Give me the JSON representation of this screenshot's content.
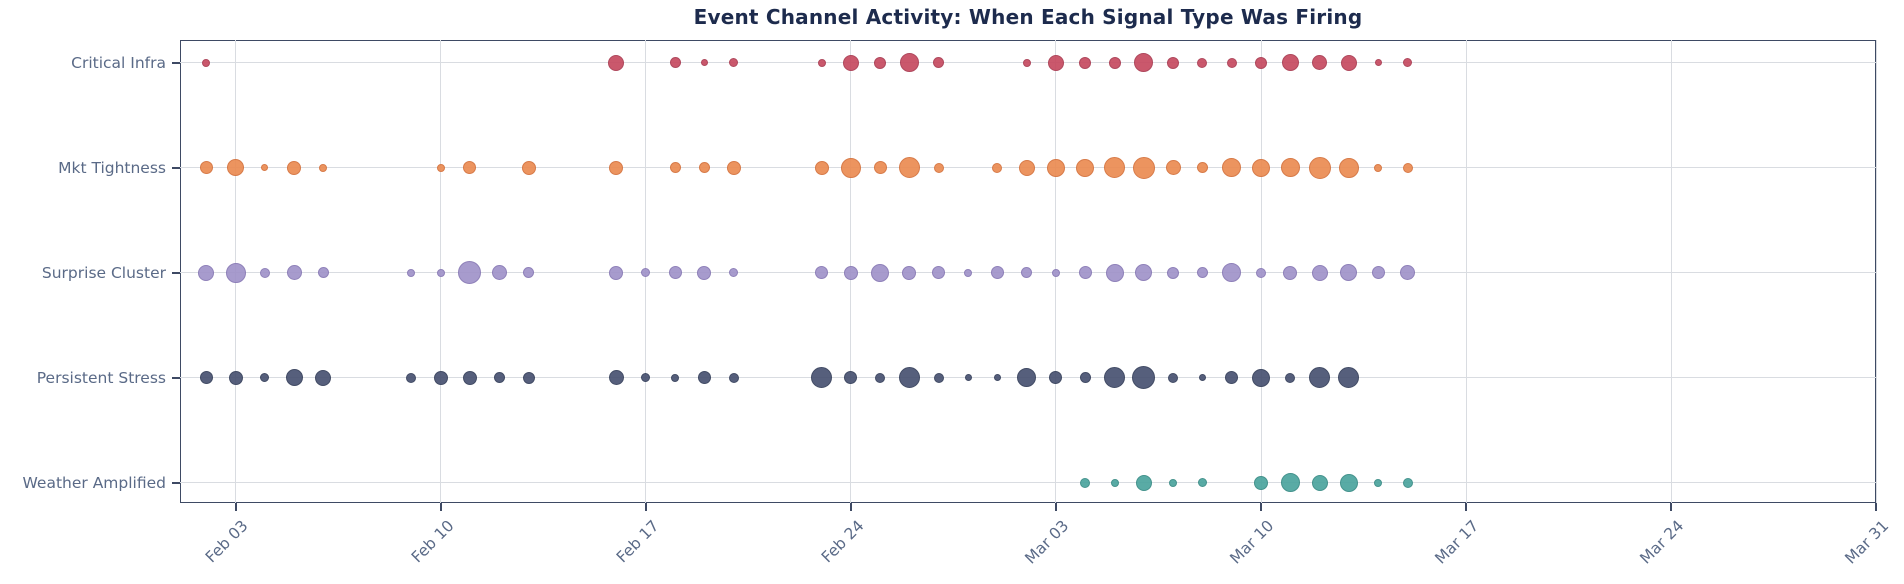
{
  "chart_data": {
    "type": "scatter",
    "title": "Event Channel Activity: When Each Signal Type Was Firing",
    "xlabel": "",
    "ylabel": "",
    "grid": true,
    "legend": "none",
    "size_encoding": "bubble diameter in px represents event intensity for that day",
    "x_axis": {
      "ticks": [
        "Feb 03",
        "Feb 10",
        "Feb 17",
        "Feb 24",
        "Mar 03",
        "Mar 10",
        "Mar 17",
        "Mar 24",
        "Mar 31"
      ],
      "range": [
        "Feb 01",
        "Mar 31"
      ],
      "tick_rotation_deg": 45
    },
    "y_axis": {
      "categories": [
        "Critical Infra",
        "Mkt Tightness",
        "Surprise Cluster",
        "Persistent Stress",
        "Weather Amplified"
      ]
    },
    "style": {
      "background": "#ffffff",
      "axis_border": "#3e4a64",
      "gridline": "#d9dce1",
      "tick_label": "#5a6a87",
      "title_color": "#1d2b4d"
    },
    "series": [
      {
        "name": "Critical Infra",
        "color": "#c64a60",
        "edge": "#a93a50",
        "points": [
          {
            "date": "Feb 02",
            "size": 8
          },
          {
            "date": "Feb 16",
            "size": 16
          },
          {
            "date": "Feb 18",
            "size": 11
          },
          {
            "date": "Feb 19",
            "size": 7
          },
          {
            "date": "Feb 20",
            "size": 9
          },
          {
            "date": "Feb 23",
            "size": 8
          },
          {
            "date": "Feb 24",
            "size": 16
          },
          {
            "date": "Feb 25",
            "size": 12
          },
          {
            "date": "Feb 26",
            "size": 19
          },
          {
            "date": "Feb 27",
            "size": 11
          },
          {
            "date": "Mar 02",
            "size": 8
          },
          {
            "date": "Mar 03",
            "size": 16
          },
          {
            "date": "Mar 04",
            "size": 12
          },
          {
            "date": "Mar 05",
            "size": 12
          },
          {
            "date": "Mar 06",
            "size": 19
          },
          {
            "date": "Mar 07",
            "size": 12
          },
          {
            "date": "Mar 08",
            "size": 10
          },
          {
            "date": "Mar 09",
            "size": 10
          },
          {
            "date": "Mar 10",
            "size": 12
          },
          {
            "date": "Mar 11",
            "size": 17
          },
          {
            "date": "Mar 12",
            "size": 15
          },
          {
            "date": "Mar 13",
            "size": 16
          },
          {
            "date": "Mar 14",
            "size": 7
          },
          {
            "date": "Mar 15",
            "size": 9
          }
        ]
      },
      {
        "name": "Mkt Tightness",
        "color": "#eb8b52",
        "edge": "#d4703a",
        "points": [
          {
            "date": "Feb 02",
            "size": 13
          },
          {
            "date": "Feb 03",
            "size": 17
          },
          {
            "date": "Feb 04",
            "size": 7
          },
          {
            "date": "Feb 05",
            "size": 14
          },
          {
            "date": "Feb 06",
            "size": 8
          },
          {
            "date": "Feb 10",
            "size": 8
          },
          {
            "date": "Feb 11",
            "size": 13
          },
          {
            "date": "Feb 13",
            "size": 14
          },
          {
            "date": "Feb 16",
            "size": 14
          },
          {
            "date": "Feb 18",
            "size": 11
          },
          {
            "date": "Feb 19",
            "size": 11
          },
          {
            "date": "Feb 20",
            "size": 14
          },
          {
            "date": "Feb 23",
            "size": 14
          },
          {
            "date": "Feb 24",
            "size": 20
          },
          {
            "date": "Feb 25",
            "size": 13
          },
          {
            "date": "Feb 26",
            "size": 21
          },
          {
            "date": "Feb 27",
            "size": 10
          },
          {
            "date": "Mar 01",
            "size": 10
          },
          {
            "date": "Mar 02",
            "size": 16
          },
          {
            "date": "Mar 03",
            "size": 18
          },
          {
            "date": "Mar 04",
            "size": 18
          },
          {
            "date": "Mar 05",
            "size": 21
          },
          {
            "date": "Mar 06",
            "size": 22
          },
          {
            "date": "Mar 07",
            "size": 15
          },
          {
            "date": "Mar 08",
            "size": 11
          },
          {
            "date": "Mar 09",
            "size": 19
          },
          {
            "date": "Mar 10",
            "size": 18
          },
          {
            "date": "Mar 11",
            "size": 19
          },
          {
            "date": "Mar 12",
            "size": 22
          },
          {
            "date": "Mar 13",
            "size": 20
          },
          {
            "date": "Mar 14",
            "size": 8
          },
          {
            "date": "Mar 15",
            "size": 10
          }
        ]
      },
      {
        "name": "Surprise Cluster",
        "color": "#a093c9",
        "edge": "#8677b4",
        "points": [
          {
            "date": "Feb 02",
            "size": 16
          },
          {
            "date": "Feb 03",
            "size": 20
          },
          {
            "date": "Feb 04",
            "size": 10
          },
          {
            "date": "Feb 05",
            "size": 15
          },
          {
            "date": "Feb 06",
            "size": 11
          },
          {
            "date": "Feb 09",
            "size": 8
          },
          {
            "date": "Feb 10",
            "size": 8
          },
          {
            "date": "Feb 11",
            "size": 23
          },
          {
            "date": "Feb 12",
            "size": 15
          },
          {
            "date": "Feb 13",
            "size": 11
          },
          {
            "date": "Feb 16",
            "size": 14
          },
          {
            "date": "Feb 17",
            "size": 9
          },
          {
            "date": "Feb 18",
            "size": 13
          },
          {
            "date": "Feb 19",
            "size": 14
          },
          {
            "date": "Feb 20",
            "size": 9
          },
          {
            "date": "Feb 23",
            "size": 13
          },
          {
            "date": "Feb 24",
            "size": 14
          },
          {
            "date": "Feb 25",
            "size": 18
          },
          {
            "date": "Feb 26",
            "size": 14
          },
          {
            "date": "Feb 27",
            "size": 13
          },
          {
            "date": "Feb 28",
            "size": 8
          },
          {
            "date": "Mar 01",
            "size": 13
          },
          {
            "date": "Mar 02",
            "size": 11
          },
          {
            "date": "Mar 03",
            "size": 8
          },
          {
            "date": "Mar 04",
            "size": 13
          },
          {
            "date": "Mar 05",
            "size": 18
          },
          {
            "date": "Mar 06",
            "size": 17
          },
          {
            "date": "Mar 07",
            "size": 12
          },
          {
            "date": "Mar 08",
            "size": 11
          },
          {
            "date": "Mar 09",
            "size": 19
          },
          {
            "date": "Mar 10",
            "size": 10
          },
          {
            "date": "Mar 11",
            "size": 14
          },
          {
            "date": "Mar 12",
            "size": 16
          },
          {
            "date": "Mar 13",
            "size": 17
          },
          {
            "date": "Mar 14",
            "size": 13
          },
          {
            "date": "Mar 15",
            "size": 15
          }
        ]
      },
      {
        "name": "Persistent Stress",
        "color": "#485271",
        "edge": "#333d59",
        "points": [
          {
            "date": "Feb 02",
            "size": 13
          },
          {
            "date": "Feb 03",
            "size": 14
          },
          {
            "date": "Feb 04",
            "size": 9
          },
          {
            "date": "Feb 05",
            "size": 17
          },
          {
            "date": "Feb 06",
            "size": 16
          },
          {
            "date": "Feb 09",
            "size": 10
          },
          {
            "date": "Feb 10",
            "size": 14
          },
          {
            "date": "Feb 11",
            "size": 14
          },
          {
            "date": "Feb 12",
            "size": 11
          },
          {
            "date": "Feb 13",
            "size": 12
          },
          {
            "date": "Feb 16",
            "size": 15
          },
          {
            "date": "Feb 17",
            "size": 9
          },
          {
            "date": "Feb 18",
            "size": 8
          },
          {
            "date": "Feb 19",
            "size": 13
          },
          {
            "date": "Feb 20",
            "size": 10
          },
          {
            "date": "Feb 23",
            "size": 21
          },
          {
            "date": "Feb 24",
            "size": 13
          },
          {
            "date": "Feb 25",
            "size": 10
          },
          {
            "date": "Feb 26",
            "size": 21
          },
          {
            "date": "Feb 27",
            "size": 10
          },
          {
            "date": "Feb 28",
            "size": 7
          },
          {
            "date": "Mar 01",
            "size": 7
          },
          {
            "date": "Mar 02",
            "size": 19
          },
          {
            "date": "Mar 03",
            "size": 13
          },
          {
            "date": "Mar 04",
            "size": 11
          },
          {
            "date": "Mar 05",
            "size": 21
          },
          {
            "date": "Mar 06",
            "size": 23
          },
          {
            "date": "Mar 07",
            "size": 10
          },
          {
            "date": "Mar 08",
            "size": 7
          },
          {
            "date": "Mar 09",
            "size": 13
          },
          {
            "date": "Mar 10",
            "size": 18
          },
          {
            "date": "Mar 11",
            "size": 10
          },
          {
            "date": "Mar 12",
            "size": 21
          },
          {
            "date": "Mar 13",
            "size": 21
          }
        ]
      },
      {
        "name": "Weather Amplified",
        "color": "#4ba49e",
        "edge": "#368a84",
        "points": [
          {
            "date": "Mar 04",
            "size": 10
          },
          {
            "date": "Mar 05",
            "size": 8
          },
          {
            "date": "Mar 06",
            "size": 16
          },
          {
            "date": "Mar 07",
            "size": 8
          },
          {
            "date": "Mar 08",
            "size": 9
          },
          {
            "date": "Mar 10",
            "size": 14
          },
          {
            "date": "Mar 11",
            "size": 19
          },
          {
            "date": "Mar 12",
            "size": 16
          },
          {
            "date": "Mar 13",
            "size": 18
          },
          {
            "date": "Mar 14",
            "size": 8
          },
          {
            "date": "Mar 15",
            "size": 10
          }
        ]
      }
    ]
  }
}
